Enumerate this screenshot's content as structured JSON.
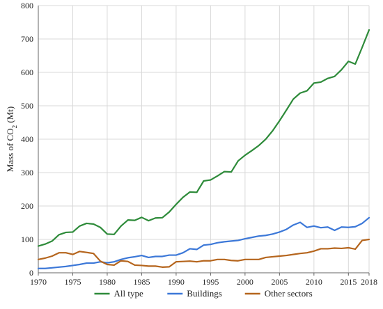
{
  "chart_data": {
    "type": "line",
    "title": "",
    "xlabel": "",
    "ylabel": "Mass of CO",
    "ylabel_subscript": "2",
    "ylabel_unit": " (Mt)",
    "xlim": [
      1970,
      2018
    ],
    "ylim": [
      0,
      800
    ],
    "grid": true,
    "legend_position": "bottom",
    "xticks": [
      1970,
      1975,
      1980,
      1985,
      1990,
      1995,
      2000,
      2005,
      2010,
      2015,
      2018
    ],
    "xtick_labels": [
      "1970",
      "1975",
      "1980",
      "1985",
      "1990",
      "1995",
      "2000",
      "2005",
      "2010",
      "2015",
      "2018"
    ],
    "yticks": [
      0,
      100,
      200,
      300,
      400,
      500,
      600,
      700,
      800
    ],
    "ytick_labels": [
      "0",
      "100",
      "200",
      "300",
      "400",
      "500",
      "600",
      "700",
      "800"
    ],
    "x": [
      1970,
      1971,
      1972,
      1973,
      1974,
      1975,
      1976,
      1977,
      1978,
      1979,
      1980,
      1981,
      1982,
      1983,
      1984,
      1985,
      1986,
      1987,
      1988,
      1989,
      1990,
      1991,
      1992,
      1993,
      1994,
      1995,
      1996,
      1997,
      1998,
      1999,
      2000,
      2001,
      2002,
      2003,
      2004,
      2005,
      2006,
      2007,
      2008,
      2009,
      2010,
      2011,
      2012,
      2013,
      2014,
      2015,
      2016,
      2017,
      2018
    ],
    "series": [
      {
        "name": "All type",
        "color": "#2e8b3a",
        "values": [
          80,
          86,
          95,
          114,
          121,
          122,
          140,
          148,
          146,
          136,
          116,
          115,
          140,
          158,
          157,
          166,
          156,
          164,
          165,
          182,
          205,
          226,
          242,
          241,
          275,
          278,
          290,
          303,
          302,
          335,
          352,
          366,
          381,
          400,
          425,
          455,
          487,
          520,
          538,
          545,
          568,
          571,
          582,
          588,
          608,
          633,
          625,
          675,
          727
        ]
      },
      {
        "name": "Buildings",
        "color": "#3c78d8",
        "values": [
          13,
          13,
          15,
          17,
          19,
          22,
          25,
          29,
          29,
          33,
          30,
          33,
          40,
          45,
          48,
          52,
          46,
          49,
          49,
          53,
          53,
          60,
          72,
          70,
          83,
          85,
          90,
          93,
          95,
          97,
          102,
          106,
          110,
          112,
          116,
          122,
          130,
          143,
          151,
          136,
          140,
          135,
          137,
          127,
          137,
          136,
          138,
          148,
          165
        ]
      },
      {
        "name": "Other sectors",
        "color": "#b5651d",
        "values": [
          40,
          44,
          50,
          60,
          60,
          55,
          64,
          61,
          58,
          35,
          25,
          23,
          36,
          34,
          23,
          22,
          20,
          20,
          17,
          18,
          33,
          34,
          35,
          33,
          36,
          36,
          40,
          40,
          37,
          36,
          40,
          40,
          40,
          46,
          48,
          50,
          52,
          55,
          58,
          60,
          65,
          72,
          72,
          74,
          73,
          75,
          71,
          97,
          100
        ]
      }
    ]
  }
}
